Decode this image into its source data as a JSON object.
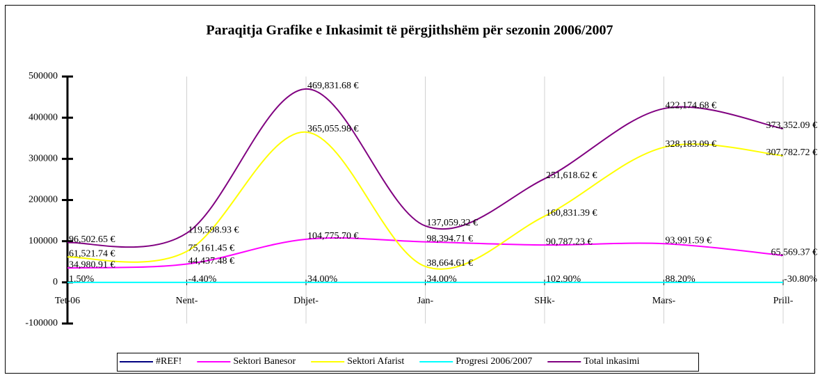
{
  "chart_data": {
    "type": "line",
    "title": "Paraqitja Grafike e Inkasimit të përgjithshëm për sezonin 2006/2007",
    "categories": [
      "Tet-06",
      "Nent-",
      "Dhjet-",
      "Jan-",
      "SHk-",
      "Mars-",
      "Prill-"
    ],
    "ylim": [
      -100000,
      500000
    ],
    "yticks": [
      -100000,
      0,
      100000,
      200000,
      300000,
      400000,
      500000
    ],
    "smooth": true,
    "series": [
      {
        "name": "#REF!",
        "color": "#000080",
        "values": [
          null,
          null,
          null,
          null,
          null,
          null,
          null
        ]
      },
      {
        "name": "Sektori Banesor",
        "color": "#ff00ff",
        "values": [
          34980.91,
          44437.48,
          104775.7,
          98394.71,
          90787.23,
          93991.59,
          65569.37
        ],
        "value_labels": [
          "34,980.91 €",
          "44,437.48 €",
          "104,775.70 €",
          "98,394.71 €",
          "90,787.23 €",
          "93,991.59 €",
          "65,569.37 €"
        ]
      },
      {
        "name": "Sektori Afarist",
        "color": "#ffff00",
        "values": [
          61521.74,
          75161.45,
          365055.98,
          38664.61,
          160831.39,
          328183.09,
          307782.72
        ],
        "value_labels": [
          "61,521.74 €",
          "75,161.45 €",
          "365,055.98 €",
          "38,664.61 €",
          "160,831.39 €",
          "328,183.09 €",
          "307,782.72 €"
        ]
      },
      {
        "name": "Progresi 2006/2007",
        "color": "#00ffff",
        "values": [
          0.015,
          -0.044,
          0.34,
          0.34,
          1.029,
          0.882,
          -0.308
        ],
        "value_labels": [
          "1.50%",
          "-4.40%",
          "34.00%",
          "34.00%",
          "102.90%",
          "88.20%",
          "-30.80%"
        ]
      },
      {
        "name": "Total inkasimi",
        "color": "#800080",
        "values": [
          96502.65,
          119598.93,
          469831.68,
          137059.32,
          251618.62,
          422174.68,
          373352.09
        ],
        "value_labels": [
          "96,502.65 €",
          "119,598.93 €",
          "469,831.68 €",
          "137,059.32 €",
          "251,618.62 €",
          "422,174.68 €",
          "373,352.09 €"
        ]
      }
    ]
  }
}
